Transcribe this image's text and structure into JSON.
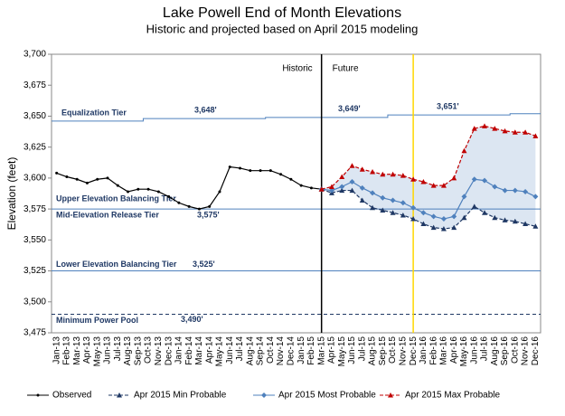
{
  "chart_data": {
    "type": "line",
    "title": "Lake Powell End of Month Elevations",
    "subtitle": "Historic and projected based on April 2015 modeling",
    "y_label": "Elevation (feet)",
    "categories": [
      "Jan-13",
      "Feb-13",
      "Mar-13",
      "Apr-13",
      "May-13",
      "Jun-13",
      "Jul-13",
      "Aug-13",
      "Sep-13",
      "Oct-13",
      "Nov-13",
      "Dec-13",
      "Jan-14",
      "Feb-14",
      "Mar-14",
      "Apr-14",
      "May-14",
      "Jun-14",
      "Jul-14",
      "Aug-14",
      "Sep-14",
      "Oct-14",
      "Nov-14",
      "Dec-14",
      "Jan-15",
      "Feb-15",
      "Mar-15",
      "Apr-15",
      "May-15",
      "Jun-15",
      "Jul-15",
      "Aug-15",
      "Sep-15",
      "Oct-15",
      "Nov-15",
      "Dec-15",
      "Jan-16",
      "Feb-16",
      "Mar-16",
      "Apr-16",
      "May-16",
      "Jun-16",
      "Jul-16",
      "Aug-16",
      "Sep-16",
      "Oct-16",
      "Nov-16",
      "Dec-16"
    ],
    "ylim": [
      3475,
      3700
    ],
    "yticks": [
      {
        "value": 3475,
        "label": "3,475"
      },
      {
        "value": 3500,
        "label": "3,500"
      },
      {
        "value": 3525,
        "label": "3,525"
      },
      {
        "value": 3550,
        "label": "3,550"
      },
      {
        "value": 3575,
        "label": "3,575"
      },
      {
        "value": 3600,
        "label": "3,600"
      },
      {
        "value": 3625,
        "label": "3,625"
      },
      {
        "value": 3650,
        "label": "3,650"
      },
      {
        "value": 3675,
        "label": "3,675"
      },
      {
        "value": 3700,
        "label": "3,700"
      }
    ],
    "series": [
      {
        "name": "Observed",
        "color": "#000000",
        "marker": "dot",
        "dash": false,
        "values": [
          3604,
          3601,
          3599,
          3596,
          3599,
          3600,
          3594,
          3589,
          3591,
          3591,
          3589,
          3585,
          3580,
          3577,
          3575,
          3577,
          3589,
          3609,
          3608,
          3606,
          3606,
          3606,
          3603,
          3599,
          3594,
          3592,
          3591,
          null,
          null,
          null,
          null,
          null,
          null,
          null,
          null,
          null,
          null,
          null,
          null,
          null,
          null,
          null,
          null,
          null,
          null,
          null,
          null,
          null
        ]
      },
      {
        "name": "Apr 2015 Min Probable",
        "color": "#1f3864",
        "marker": "triangle",
        "dash": true,
        "values": [
          null,
          null,
          null,
          null,
          null,
          null,
          null,
          null,
          null,
          null,
          null,
          null,
          null,
          null,
          null,
          null,
          null,
          null,
          null,
          null,
          null,
          null,
          null,
          null,
          null,
          null,
          3591,
          3588,
          3590,
          3590,
          3582,
          3576,
          3574,
          3572,
          3570,
          3567,
          3563,
          3560,
          3559,
          3560,
          3568,
          3577,
          3572,
          3568,
          3566,
          3565,
          3563,
          3561
        ]
      },
      {
        "name": "Apr 2015 Most Probable",
        "color": "#4f81bd",
        "marker": "diamond",
        "dash": false,
        "values": [
          null,
          null,
          null,
          null,
          null,
          null,
          null,
          null,
          null,
          null,
          null,
          null,
          null,
          null,
          null,
          null,
          null,
          null,
          null,
          null,
          null,
          null,
          null,
          null,
          null,
          null,
          3591,
          3590,
          3593,
          3597,
          3592,
          3588,
          3584,
          3582,
          3580,
          3576,
          3572,
          3569,
          3567,
          3569,
          3585,
          3599,
          3598,
          3593,
          3590,
          3590,
          3589,
          3585
        ]
      },
      {
        "name": "Apr 2015 Max Probable",
        "color": "#c00000",
        "marker": "triangle",
        "dash": true,
        "values": [
          null,
          null,
          null,
          null,
          null,
          null,
          null,
          null,
          null,
          null,
          null,
          null,
          null,
          null,
          null,
          null,
          null,
          null,
          null,
          null,
          null,
          null,
          null,
          null,
          null,
          null,
          3591,
          3593,
          3601,
          3610,
          3607,
          3605,
          3603,
          3603,
          3602,
          3599,
          3597,
          3594,
          3594,
          3600,
          3622,
          3640,
          3642,
          3640,
          3638,
          3637,
          3637,
          3634
        ]
      }
    ],
    "band_fill": "#dce6f2",
    "tiers": [
      {
        "label": "Equalization Tier",
        "values": [
          3646,
          3646,
          3646,
          3646,
          3646,
          3646,
          3646,
          3646,
          3646,
          3648,
          3648,
          3648,
          3648,
          3648,
          3648,
          3648,
          3648,
          3648,
          3648,
          3648,
          3648,
          3649,
          3649,
          3649,
          3649,
          3649,
          3649,
          3649,
          3649,
          3649,
          3649,
          3649,
          3649,
          3651,
          3651,
          3651,
          3651,
          3651,
          3651,
          3651,
          3651,
          3651,
          3651,
          3651,
          3651,
          3652,
          3652,
          3652
        ]
      },
      {
        "label": "Upper Elevation Balancing Tier",
        "value": 3575
      },
      {
        "label": "Mid-Elevation  Release Tier",
        "value": 3575
      },
      {
        "label": "Lower Elevation Balancing Tier",
        "value": 3525
      },
      {
        "label": "Minimum Power Pool",
        "value": 3490,
        "dash": true
      }
    ],
    "elevation_labels": [
      {
        "value": 3648,
        "label": "3,648'"
      },
      {
        "value": 3649,
        "label": "3,649'"
      },
      {
        "value": 3651,
        "label": "3,651'"
      },
      {
        "value": 3575,
        "label": "3,575'"
      },
      {
        "value": 3525,
        "label": "3,525'"
      },
      {
        "value": 3490,
        "label": "3,490'"
      }
    ],
    "divider": {
      "category": "Mar-15",
      "left": "Historic",
      "right": "Future"
    },
    "marker_line": {
      "category": "Dec-15",
      "color": "#ffd700"
    },
    "tier_color": "#4f81bd",
    "tier_text_color": "#1f3864"
  }
}
